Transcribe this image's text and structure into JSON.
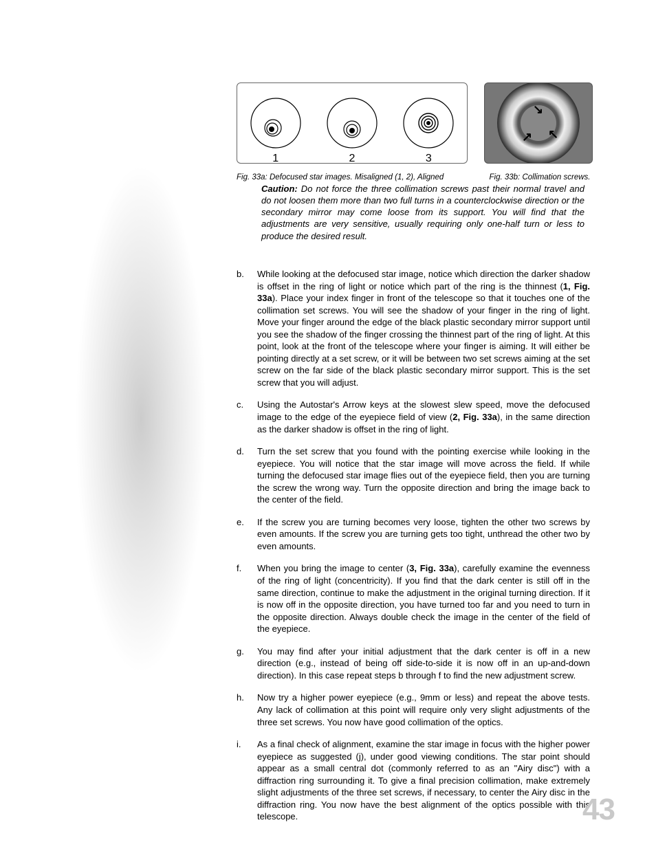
{
  "page_number": "43",
  "fig_a": {
    "caption": "Fig. 33a: Defocused star images. Misaligned (1, 2), Aligned",
    "labels": [
      "1",
      "2",
      "3"
    ]
  },
  "fig_b": {
    "caption": "Fig. 33b: Collimation screws."
  },
  "caution": {
    "label": "Caution:",
    "text": " Do not force the three collimation screws past their normal travel and do not loosen them more than two full turns in a counterclockwise direction or the secondary mirror may come loose from its support. You will find that the adjustments are very sensitive, usually requiring only one-half turn or less to produce the desired result."
  },
  "items": [
    {
      "m": "b.",
      "pre": "While looking at the defocused star image, notice which direction the darker shadow is offset in the ring of light or notice which part of the ring is the thinnest (",
      "bold": "1, Fig. 33a",
      "post": "). Place your index finger in front of the telescope so that it touches one of the collimation set screws. You will see the shadow of your finger in the ring of light. Move your finger around the edge of the black plastic secondary mirror support until you see the shadow of the finger crossing the thinnest part of the ring of light. At this point, look at the front of the telescope where your finger is aiming. It will either be pointing directly at a set screw, or it will be between two set screws aiming at the set screw on the far side of the black plastic secondary mirror support. This is the set screw that you will adjust."
    },
    {
      "m": "c.",
      "pre": "Using the Autostar's Arrow keys at the slowest slew speed, move the defocused image to the edge of the eyepiece field of view (",
      "bold": "2, Fig. 33a",
      "post": "), in the same direction as the darker shadow is offset in the ring of light."
    },
    {
      "m": "d.",
      "pre": "Turn the set screw that you found with the pointing exercise while looking in the eyepiece. You will notice that the star image will move across the field. If while turning the defocused star image flies out of the eyepiece field, then you are turning the screw the wrong way. Turn the opposite direction and bring the image back to the center of the field.",
      "bold": "",
      "post": ""
    },
    {
      "m": "e.",
      "pre": "If the screw you are turning becomes very loose, tighten the other two screws by even amounts. If the screw you are turning gets too tight, unthread the other two by even amounts.",
      "bold": "",
      "post": ""
    },
    {
      "m": "f.",
      "pre": "When you bring the image to center (",
      "bold": "3, Fig. 33a",
      "post": "), carefully examine the evenness of the ring of light (concentricity). If you find that the dark center is still off in the same direction, continue to make the adjustment in the original turning direction. If it is now off in the opposite direction, you have turned too far and you need to turn in the opposite direction. Always double check the image in the center of the field of the eyepiece."
    },
    {
      "m": "g.",
      "pre": "You may find after your initial adjustment that the dark center is off in a new direction (e.g., instead of being off side-to-side it is now off in an up-and-down direction). In this case repeat steps b through f to find the new adjustment screw.",
      "bold": "",
      "post": ""
    },
    {
      "m": "h.",
      "pre": "Now try a higher power eyepiece (e.g., 9mm or less) and repeat the above tests. Any lack of collimation at this point will require only very slight adjustments of the three set screws. You now have good collimation of the optics.",
      "bold": "",
      "post": ""
    },
    {
      "m": "i.",
      "pre": "As a final check of alignment, examine the star image in focus with the higher power eyepiece as suggested (j), under good viewing conditions. The star point should appear as a small central dot (commonly referred to as an \"Airy disc\") with a diffraction ring surrounding it. To give a final precision collimation, make extremely slight adjustments of the three set screws, if necessary, to center the Airy disc in the diffraction ring. You now have the best alignment of the optics possible with this telescope.",
      "bold": "",
      "post": ""
    }
  ]
}
